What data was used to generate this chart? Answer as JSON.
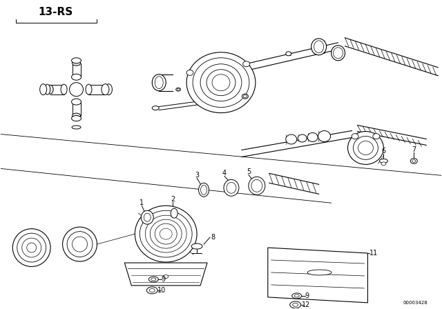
{
  "title": "13-RS",
  "diagram_id": "00003428",
  "bg_color": "#ffffff",
  "line_color": "#000000",
  "title_fontsize": 11,
  "label_fontsize": 7,
  "fig_width": 6.4,
  "fig_height": 4.48,
  "dpi": 100
}
